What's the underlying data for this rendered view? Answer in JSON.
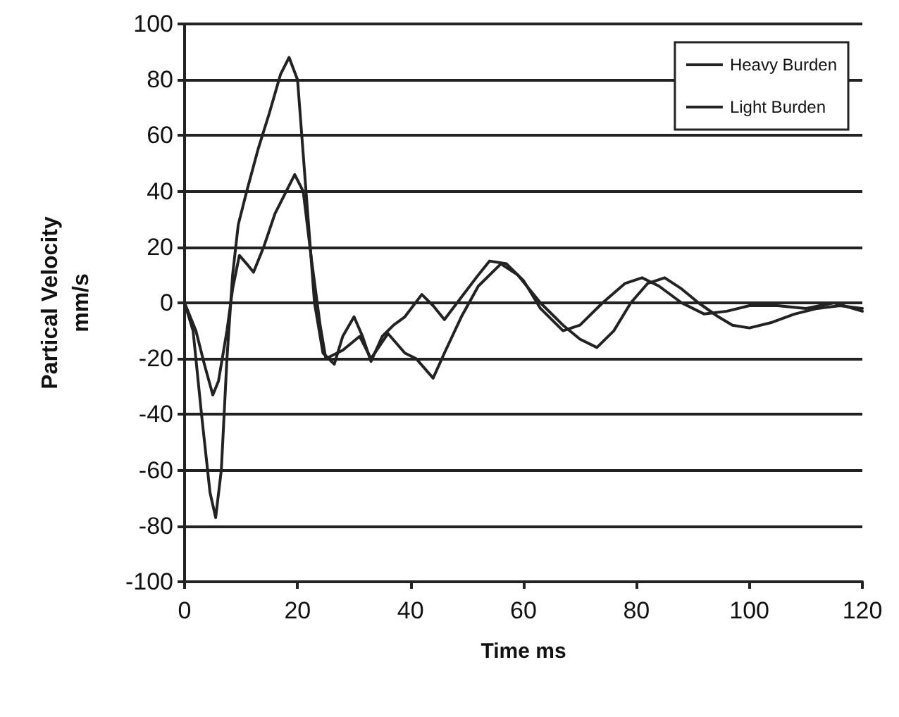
{
  "chart_data": {
    "type": "line",
    "xlabel": "Time ms",
    "ylabel": "Partical Velocity\nmm/s",
    "xlim": [
      0,
      120
    ],
    "xticks": [
      0,
      20,
      40,
      60,
      80,
      100,
      120
    ],
    "ylim": [
      -100,
      100
    ],
    "yticks": [
      -100,
      -80,
      -60,
      -40,
      -20,
      0,
      20,
      40,
      60,
      80,
      100
    ],
    "grid": "y",
    "legend": "top right",
    "marker": "none",
    "line_style": "solid",
    "series": [
      {
        "name": "Heavy Burden",
        "color": "#222222",
        "x": [
          0,
          1.5,
          3,
          4.5,
          5.5,
          6.5,
          7.5,
          8.5,
          9.5,
          11,
          13,
          15,
          17,
          18.5,
          20,
          21.5,
          23,
          24.5,
          26.5,
          28,
          30,
          31.5,
          33,
          35,
          37,
          39,
          42,
          44,
          46,
          49,
          52,
          54,
          57,
          60,
          63,
          67,
          70,
          74,
          78,
          81,
          84,
          88,
          92,
          96,
          100,
          105,
          110,
          115,
          120
        ],
        "values": [
          0,
          -10,
          -40,
          -68,
          -77,
          -60,
          -20,
          10,
          28,
          40,
          55,
          68,
          82,
          88,
          80,
          40,
          0,
          -18,
          -22,
          -12,
          -5,
          -12,
          -21,
          -12,
          -8,
          -5,
          3,
          -1,
          -6,
          2,
          10,
          15,
          14,
          8,
          -2,
          -10,
          -8,
          0,
          7,
          9,
          6,
          0,
          -4,
          -3,
          -1,
          -1,
          -2,
          0,
          -3
        ]
      },
      {
        "name": "Light Burden",
        "color": "#222222",
        "x": [
          0,
          2,
          3.5,
          5,
          6,
          7.5,
          8.5,
          9.7,
          11,
          12.2,
          14,
          16,
          18,
          19.5,
          21,
          22.5,
          24,
          25,
          28,
          31,
          33,
          36,
          39,
          41,
          44,
          46,
          49,
          52,
          56,
          59,
          63,
          67,
          70,
          73,
          76,
          79,
          82,
          85,
          88,
          91,
          94.5,
          97,
          100,
          104,
          108,
          112,
          116,
          120
        ],
        "values": [
          0,
          -10,
          -22,
          -33,
          -28,
          -10,
          5,
          17,
          14,
          11,
          20,
          32,
          40,
          46,
          40,
          15,
          -8,
          -20,
          -17,
          -12,
          -20,
          -11,
          -18,
          -20,
          -27,
          -18,
          -5,
          6,
          14,
          10,
          0,
          -8,
          -13,
          -16,
          -10,
          0,
          7,
          9,
          5,
          0,
          -5,
          -8,
          -9,
          -7,
          -4,
          -2,
          -1,
          -2
        ]
      }
    ]
  }
}
